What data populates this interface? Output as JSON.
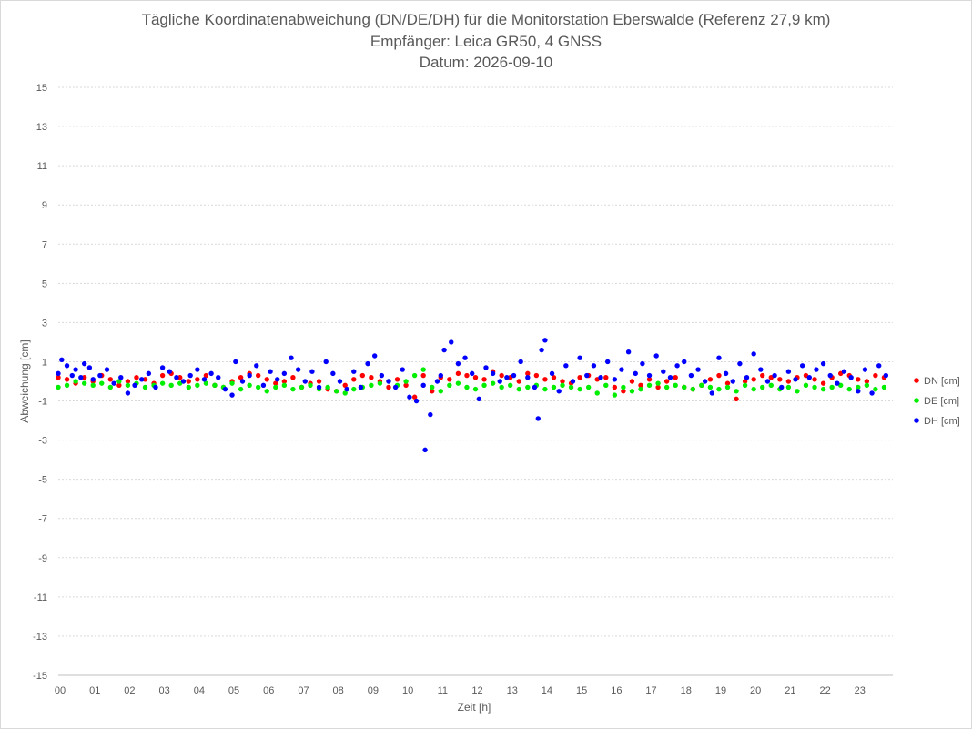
{
  "chart_data": {
    "type": "scatter",
    "title": [
      "Tägliche Koordinatenabweichung (DN/DE/DH) für die Monitorstation Eberswalde (Referenz 27,9 km)",
      "Empfänger: Leica GR50, 4 GNSS",
      "Datum: 2026-09-10"
    ],
    "xlabel": "Zeit [h]",
    "ylabel": "Abweichung [cm]",
    "xlim": [
      0,
      24
    ],
    "ylim": [
      -15,
      15
    ],
    "x_ticks": [
      "00",
      "01",
      "02",
      "03",
      "04",
      "05",
      "06",
      "07",
      "08",
      "09",
      "10",
      "11",
      "12",
      "13",
      "14",
      "15",
      "16",
      "17",
      "18",
      "19",
      "20",
      "21",
      "22",
      "23"
    ],
    "y_ticks": [
      15,
      13,
      11,
      9,
      7,
      5,
      3,
      1,
      -1,
      -3,
      -5,
      -7,
      -9,
      -11,
      -13,
      -15
    ],
    "y_tick_labels": [
      "15",
      "13",
      "11",
      "9",
      "7",
      "5",
      "3",
      "1",
      "-1",
      "-3",
      "-5",
      "-7",
      "-9",
      "-11",
      "-13",
      "-15"
    ],
    "grid": "horizontal-dotted",
    "legend_position": "right",
    "series": [
      {
        "name": "DN [cm]",
        "color": "#ff0000",
        "x": [
          0.0,
          0.25,
          0.5,
          0.75,
          1.0,
          1.25,
          1.5,
          1.75,
          2.0,
          2.25,
          2.5,
          2.75,
          3.0,
          3.25,
          3.5,
          3.75,
          4.0,
          4.25,
          4.5,
          4.75,
          5.0,
          5.25,
          5.5,
          5.75,
          6.0,
          6.25,
          6.5,
          6.75,
          7.0,
          7.25,
          7.5,
          7.75,
          8.0,
          8.25,
          8.5,
          8.75,
          9.0,
          9.25,
          9.5,
          9.75,
          10.0,
          10.25,
          10.5,
          10.75,
          11.0,
          11.25,
          11.5,
          11.75,
          12.0,
          12.25,
          12.5,
          12.75,
          13.0,
          13.25,
          13.5,
          13.75,
          14.0,
          14.25,
          14.5,
          14.75,
          15.0,
          15.25,
          15.5,
          15.75,
          16.0,
          16.25,
          16.5,
          16.75,
          17.0,
          17.25,
          17.5,
          17.75,
          18.0,
          18.25,
          18.5,
          18.75,
          19.0,
          19.25,
          19.5,
          19.75,
          20.0,
          20.25,
          20.5,
          20.75,
          21.0,
          21.25,
          21.5,
          21.75,
          22.0,
          22.25,
          22.5,
          22.75,
          23.0,
          23.25,
          23.5,
          23.75
        ],
        "y": [
          0.2,
          0.1,
          -0.1,
          0.2,
          0.0,
          0.3,
          0.1,
          -0.2,
          0.0,
          0.2,
          0.1,
          -0.1,
          0.3,
          0.4,
          0.2,
          0.0,
          0.1,
          0.3,
          -0.2,
          -0.3,
          0.0,
          0.2,
          0.4,
          0.3,
          0.1,
          -0.1,
          0.0,
          0.2,
          -0.3,
          -0.1,
          0.0,
          -0.4,
          -0.5,
          -0.2,
          0.1,
          0.3,
          0.2,
          0.0,
          -0.3,
          0.1,
          -0.2,
          -0.8,
          0.3,
          -0.5,
          0.2,
          0.1,
          0.4,
          0.3,
          0.2,
          0.1,
          0.5,
          0.3,
          0.2,
          0.0,
          0.4,
          0.3,
          0.1,
          0.2,
          0.0,
          -0.1,
          0.2,
          0.3,
          0.1,
          0.2,
          -0.3,
          -0.5,
          0.0,
          -0.2,
          0.1,
          -0.3,
          0.0,
          0.2,
          -0.3,
          -0.4,
          -0.2,
          0.1,
          0.3,
          -0.1,
          -0.9,
          0.0,
          0.1,
          0.3,
          0.2,
          0.1,
          0.0,
          0.2,
          0.3,
          0.1,
          -0.1,
          0.2,
          0.4,
          0.3,
          0.1,
          0.0,
          0.3,
          0.2
        ]
      },
      {
        "name": "DE [cm]",
        "color": "#00ee00",
        "x": [
          0.0,
          0.25,
          0.5,
          0.75,
          1.0,
          1.25,
          1.5,
          1.75,
          2.0,
          2.25,
          2.5,
          2.75,
          3.0,
          3.25,
          3.5,
          3.75,
          4.0,
          4.25,
          4.5,
          4.75,
          5.0,
          5.25,
          5.5,
          5.75,
          6.0,
          6.25,
          6.5,
          6.75,
          7.0,
          7.25,
          7.5,
          7.75,
          8.0,
          8.25,
          8.5,
          8.75,
          9.0,
          9.25,
          9.5,
          9.75,
          10.0,
          10.25,
          10.5,
          10.75,
          11.0,
          11.25,
          11.5,
          11.75,
          12.0,
          12.25,
          12.5,
          12.75,
          13.0,
          13.25,
          13.5,
          13.75,
          14.0,
          14.25,
          14.5,
          14.75,
          15.0,
          15.25,
          15.5,
          15.75,
          16.0,
          16.25,
          16.5,
          16.75,
          17.0,
          17.25,
          17.5,
          17.75,
          18.0,
          18.25,
          18.5,
          18.75,
          19.0,
          19.25,
          19.5,
          19.75,
          20.0,
          20.25,
          20.5,
          20.75,
          21.0,
          21.25,
          21.5,
          21.75,
          22.0,
          22.25,
          22.5,
          22.75,
          23.0,
          23.25,
          23.5,
          23.75
        ],
        "y": [
          -0.3,
          -0.2,
          0.0,
          -0.1,
          -0.2,
          -0.1,
          -0.3,
          0.0,
          -0.2,
          -0.1,
          -0.3,
          -0.2,
          -0.1,
          -0.2,
          -0.1,
          -0.3,
          -0.2,
          -0.1,
          -0.2,
          -0.3,
          -0.1,
          -0.4,
          -0.2,
          -0.3,
          -0.5,
          -0.3,
          -0.2,
          -0.4,
          -0.3,
          -0.2,
          -0.4,
          -0.3,
          -0.5,
          -0.6,
          -0.4,
          -0.3,
          -0.2,
          -0.1,
          0.0,
          -0.2,
          0.0,
          0.3,
          0.6,
          -0.3,
          -0.5,
          -0.2,
          -0.1,
          -0.3,
          -0.4,
          -0.2,
          -0.1,
          -0.3,
          -0.2,
          -0.4,
          -0.3,
          -0.2,
          -0.4,
          -0.3,
          -0.2,
          -0.3,
          -0.4,
          -0.3,
          -0.6,
          -0.2,
          -0.7,
          -0.3,
          -0.5,
          -0.4,
          -0.2,
          -0.1,
          -0.3,
          -0.2,
          -0.3,
          -0.4,
          -0.2,
          -0.3,
          -0.4,
          -0.3,
          -0.5,
          -0.2,
          -0.4,
          -0.3,
          -0.2,
          -0.4,
          -0.3,
          -0.5,
          -0.2,
          -0.3,
          -0.4,
          -0.3,
          -0.2,
          -0.4,
          -0.3,
          -0.2,
          -0.4,
          -0.3
        ]
      },
      {
        "name": "DH [cm]",
        "color": "#0000ff",
        "x": [
          0.0,
          0.1,
          0.25,
          0.4,
          0.5,
          0.65,
          0.75,
          0.9,
          1.0,
          1.2,
          1.4,
          1.6,
          1.8,
          2.0,
          2.2,
          2.4,
          2.6,
          2.8,
          3.0,
          3.2,
          3.4,
          3.6,
          3.8,
          4.0,
          4.2,
          4.4,
          4.6,
          4.8,
          5.0,
          5.1,
          5.3,
          5.5,
          5.7,
          5.9,
          6.1,
          6.3,
          6.5,
          6.7,
          6.9,
          7.1,
          7.3,
          7.5,
          7.7,
          7.9,
          8.1,
          8.3,
          8.5,
          8.7,
          8.9,
          9.1,
          9.3,
          9.5,
          9.7,
          9.9,
          10.1,
          10.3,
          10.5,
          10.55,
          10.7,
          10.9,
          11.0,
          11.1,
          11.3,
          11.5,
          11.7,
          11.9,
          12.1,
          12.3,
          12.5,
          12.7,
          12.9,
          13.1,
          13.3,
          13.5,
          13.7,
          13.8,
          13.9,
          14.0,
          14.2,
          14.4,
          14.6,
          14.8,
          15.0,
          15.2,
          15.4,
          15.6,
          15.8,
          16.0,
          16.2,
          16.4,
          16.6,
          16.8,
          17.0,
          17.2,
          17.4,
          17.6,
          17.8,
          18.0,
          18.2,
          18.4,
          18.6,
          18.8,
          19.0,
          19.2,
          19.4,
          19.6,
          19.8,
          20.0,
          20.2,
          20.4,
          20.6,
          20.8,
          21.0,
          21.2,
          21.4,
          21.6,
          21.8,
          22.0,
          22.2,
          22.4,
          22.6,
          22.8,
          23.0,
          23.2,
          23.4,
          23.6,
          23.8
        ],
        "y": [
          0.4,
          1.1,
          0.8,
          0.3,
          0.6,
          0.2,
          0.9,
          0.7,
          0.1,
          0.3,
          0.6,
          -0.1,
          0.2,
          -0.6,
          -0.2,
          0.1,
          0.4,
          -0.3,
          0.7,
          0.5,
          0.2,
          0.0,
          0.3,
          0.6,
          0.1,
          0.4,
          0.2,
          -0.4,
          -0.7,
          1.0,
          0.0,
          0.3,
          0.8,
          -0.2,
          0.5,
          0.1,
          0.4,
          1.2,
          0.6,
          0.0,
          0.5,
          -0.3,
          1.0,
          0.4,
          0.0,
          -0.4,
          0.5,
          -0.3,
          0.9,
          1.3,
          0.3,
          0.0,
          -0.3,
          0.6,
          -0.8,
          -1.0,
          -0.2,
          -3.5,
          -1.7,
          0.0,
          0.3,
          1.6,
          2.0,
          0.9,
          1.2,
          0.4,
          -0.9,
          0.7,
          0.4,
          0.0,
          0.2,
          0.3,
          1.0,
          0.2,
          -0.3,
          -1.9,
          1.6,
          2.1,
          0.4,
          -0.5,
          0.8,
          0.0,
          1.2,
          0.3,
          0.8,
          0.2,
          1.0,
          0.1,
          0.6,
          1.5,
          0.4,
          0.9,
          0.3,
          1.3,
          0.5,
          0.2,
          0.8,
          1.0,
          0.3,
          0.6,
          0.0,
          -0.6,
          1.2,
          0.4,
          0.0,
          0.9,
          0.2,
          1.4,
          0.6,
          0.0,
          0.3,
          -0.3,
          0.5,
          0.1,
          0.8,
          0.2,
          0.6,
          0.9,
          0.3,
          -0.1,
          0.5,
          0.2,
          -0.5,
          0.6,
          -0.6,
          0.8,
          0.3
        ]
      }
    ]
  }
}
